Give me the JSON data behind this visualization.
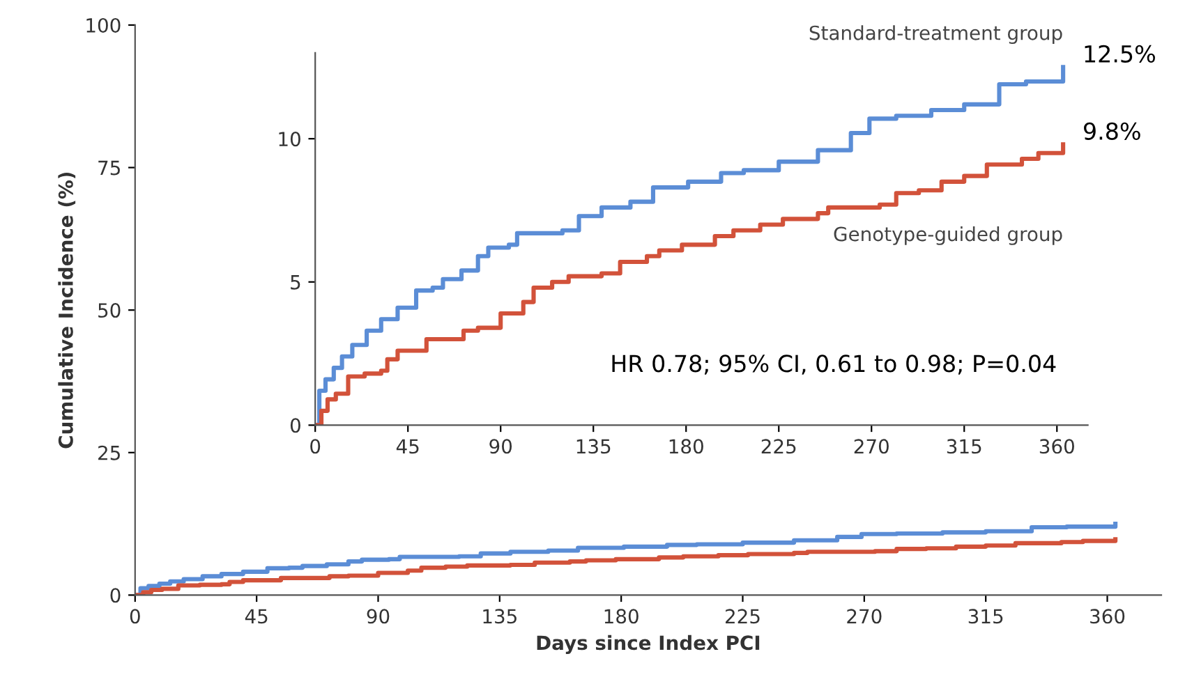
{
  "chart_data": [
    {
      "type": "step",
      "xlabel": "Days since Index PCI",
      "ylabel": "Cumulative Incidence (%)",
      "xlim": [
        0,
        380
      ],
      "ylim": [
        0,
        100
      ],
      "xticks": [
        0,
        45,
        90,
        135,
        180,
        225,
        270,
        315,
        360
      ],
      "yticks": [
        0,
        25,
        50,
        75,
        100
      ],
      "grid": false,
      "legend": false,
      "series": [
        {
          "color": "#5b8dd6",
          "x": [
            0,
            2,
            5,
            9,
            13,
            18,
            25,
            32,
            40,
            49,
            57,
            62,
            71,
            79,
            84,
            94,
            98,
            120,
            128,
            139,
            153,
            164,
            181,
            197,
            208,
            225,
            244,
            260,
            269,
            282,
            299,
            315,
            332,
            345,
            363
          ],
          "values": [
            0,
            1.2,
            1.6,
            2.0,
            2.4,
            2.8,
            3.3,
            3.7,
            4.1,
            4.7,
            4.8,
            5.1,
            5.4,
            5.9,
            6.2,
            6.3,
            6.7,
            6.8,
            7.3,
            7.6,
            7.8,
            8.3,
            8.5,
            8.8,
            8.9,
            9.2,
            9.6,
            10.2,
            10.7,
            10.8,
            11.0,
            11.2,
            11.9,
            12.0,
            12.5
          ]
        },
        {
          "color": "#d2523a",
          "x": [
            0,
            3,
            6,
            10,
            16,
            24,
            32,
            35,
            40,
            49,
            54,
            68,
            72,
            79,
            90,
            101,
            106,
            115,
            123,
            139,
            148,
            161,
            167,
            178,
            194,
            203,
            216,
            227,
            244,
            249,
            274,
            282,
            293,
            304,
            315,
            326,
            343,
            351,
            363
          ],
          "values": [
            0,
            0.5,
            0.9,
            1.1,
            1.7,
            1.8,
            1.9,
            2.3,
            2.6,
            2.6,
            3.0,
            3.0,
            3.3,
            3.4,
            3.9,
            4.3,
            4.8,
            5.0,
            5.2,
            5.3,
            5.7,
            5.9,
            6.1,
            6.3,
            6.6,
            6.8,
            7.0,
            7.2,
            7.4,
            7.6,
            7.7,
            8.1,
            8.2,
            8.5,
            8.7,
            9.1,
            9.3,
            9.5,
            9.8
          ]
        }
      ]
    },
    {
      "type": "step",
      "xlim": [
        0,
        375
      ],
      "ylim": [
        0,
        13
      ],
      "xticks": [
        0,
        45,
        90,
        135,
        180,
        225,
        270,
        315,
        360
      ],
      "yticks": [
        0,
        5,
        10
      ],
      "grid": false,
      "legend": false,
      "annotations": [
        {
          "text": "12.5%",
          "x": 363,
          "y": 12.5
        },
        {
          "text": "9.8%",
          "x": 363,
          "y": 9.8
        },
        "HR 0.78; 95% CI, 0.61 to 0.98; P=0.04"
      ],
      "series": [
        {
          "name": "Standard-treatment group",
          "color": "#5b8dd6",
          "x": [
            0,
            2,
            5,
            9,
            13,
            18,
            25,
            32,
            40,
            49,
            57,
            62,
            71,
            79,
            84,
            94,
            98,
            120,
            128,
            139,
            153,
            164,
            181,
            197,
            208,
            225,
            244,
            260,
            269,
            282,
            299,
            315,
            332,
            345,
            363
          ],
          "values": [
            0,
            1.2,
            1.6,
            2.0,
            2.4,
            2.8,
            3.3,
            3.7,
            4.1,
            4.7,
            4.8,
            5.1,
            5.4,
            5.9,
            6.2,
            6.3,
            6.7,
            6.8,
            7.3,
            7.6,
            7.8,
            8.3,
            8.5,
            8.8,
            8.9,
            9.2,
            9.6,
            10.2,
            10.7,
            10.8,
            11.0,
            11.2,
            11.9,
            12.0,
            12.5
          ]
        },
        {
          "name": "Genotype-guided group",
          "color": "#d2523a",
          "x": [
            0,
            3,
            6,
            10,
            16,
            24,
            32,
            35,
            40,
            49,
            54,
            68,
            72,
            79,
            90,
            101,
            106,
            115,
            123,
            139,
            148,
            161,
            167,
            178,
            194,
            203,
            216,
            227,
            244,
            249,
            274,
            282,
            293,
            304,
            315,
            326,
            343,
            351,
            363
          ],
          "values": [
            0,
            0.5,
            0.9,
            1.1,
            1.7,
            1.8,
            1.9,
            2.3,
            2.6,
            2.6,
            3.0,
            3.0,
            3.3,
            3.4,
            3.9,
            4.3,
            4.8,
            5.0,
            5.2,
            5.3,
            5.7,
            5.9,
            6.1,
            6.3,
            6.6,
            6.8,
            7.0,
            7.2,
            7.4,
            7.6,
            7.7,
            8.1,
            8.2,
            8.5,
            8.7,
            9.1,
            9.3,
            9.5,
            9.8
          ]
        }
      ]
    }
  ]
}
